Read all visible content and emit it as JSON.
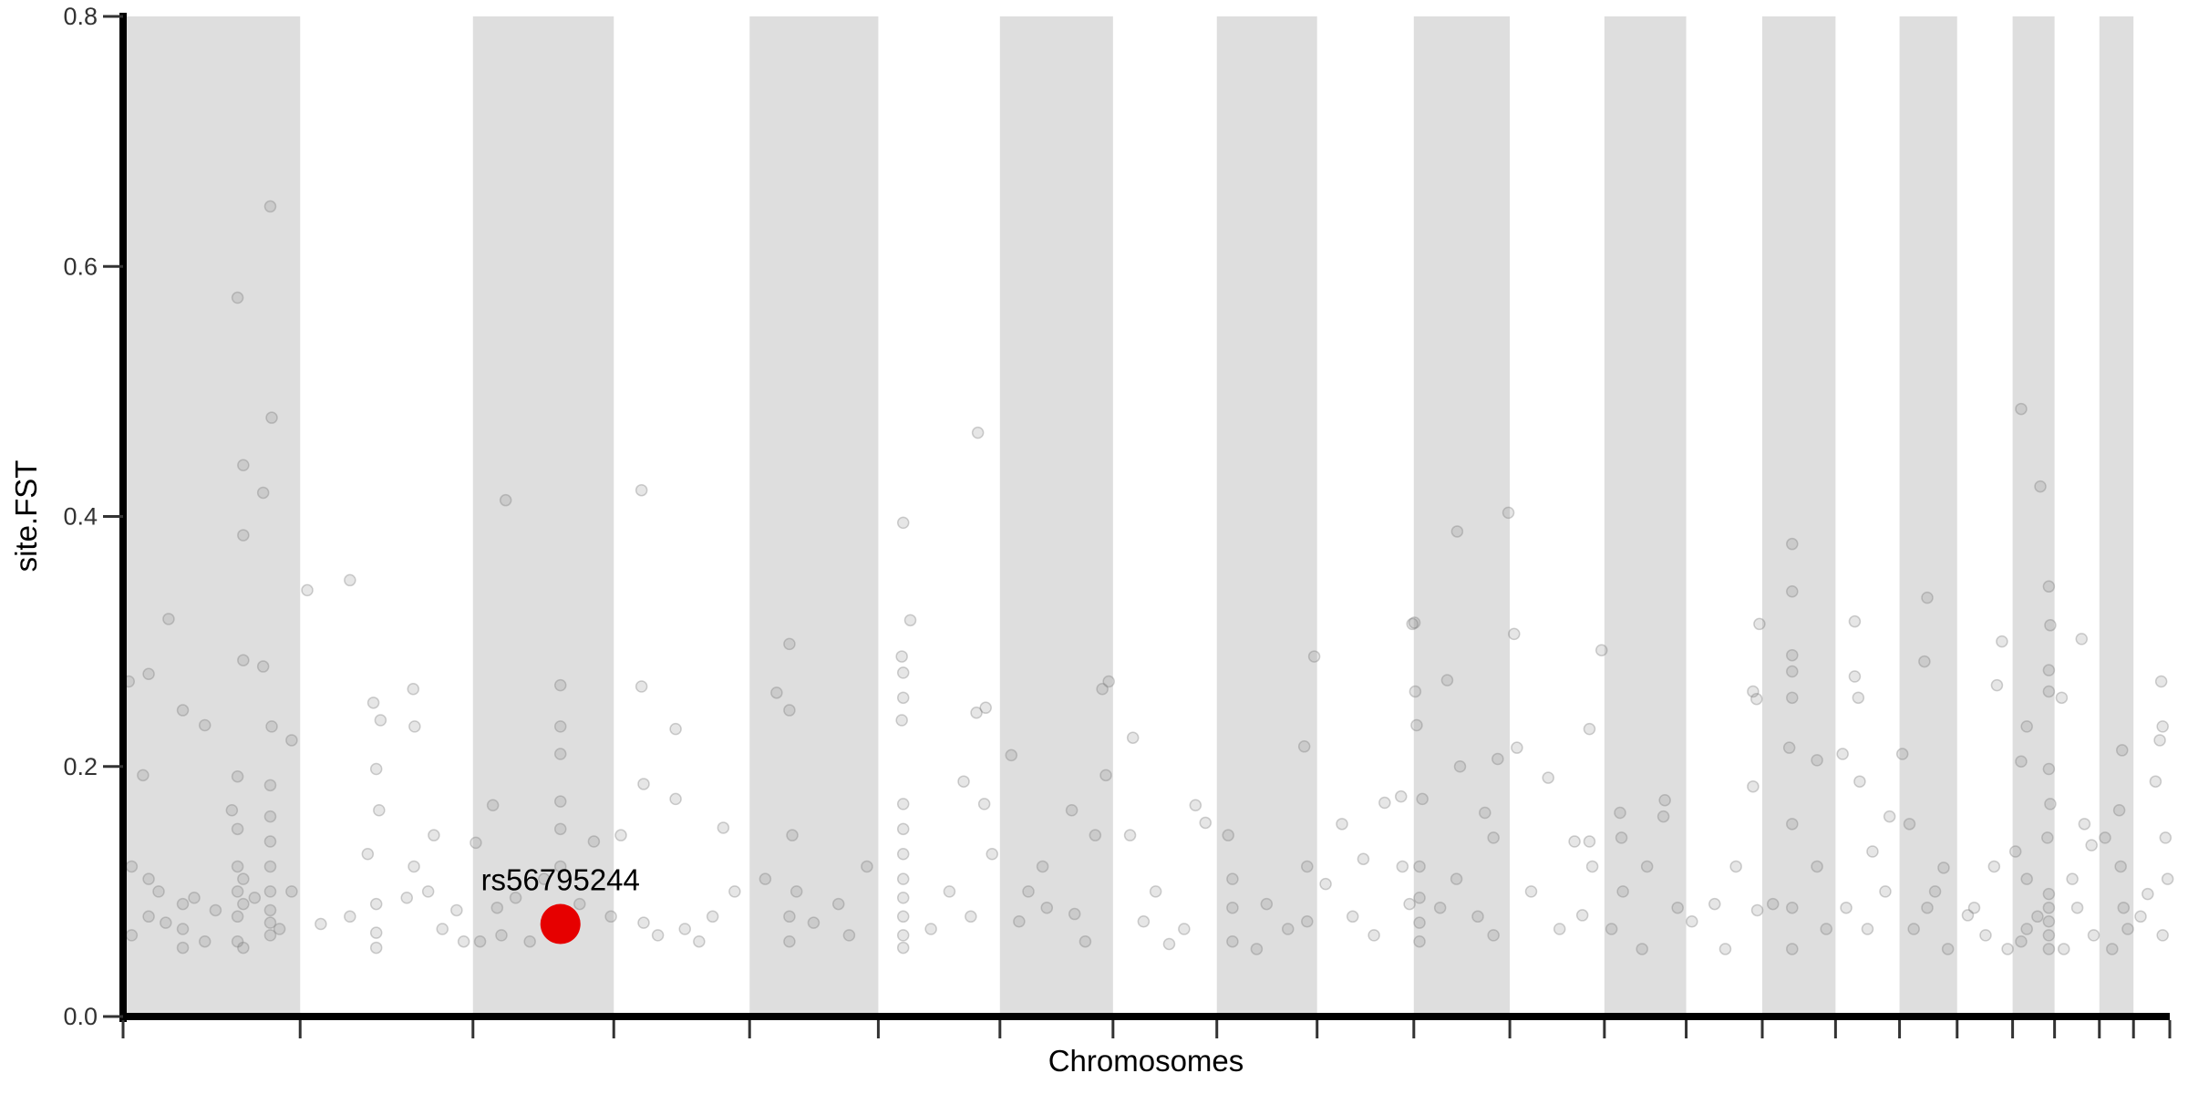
{
  "chart_data": {
    "type": "scatter",
    "title": "",
    "xlabel": "Chromosomes",
    "ylabel": "site.FST",
    "ylim": [
      0,
      0.8
    ],
    "yticks": [
      "0.0",
      "0.2",
      "0.4",
      "0.6",
      "0.8"
    ],
    "grid": false,
    "legend": "none",
    "band_color": "#dedede",
    "point_color": "#777777",
    "highlight_color": "#e60000",
    "chromosome_lengths_mb": [
      249,
      243,
      198,
      191,
      181,
      171,
      159,
      146,
      141,
      136,
      135,
      133,
      115,
      107,
      103,
      90,
      81,
      78,
      59,
      63,
      48,
      51
    ],
    "shaded_chromosomes": [
      1,
      3,
      5,
      7,
      9,
      11,
      13,
      15,
      17,
      19,
      21
    ],
    "highlight": {
      "label": "rs56795244",
      "chr": 3,
      "pos_mb": 123,
      "fst": 0.074
    },
    "points_columns": [
      "chr",
      "pos_mb",
      "fst"
    ],
    "points": [
      [
        1,
        207,
        0.648
      ],
      [
        1,
        161,
        0.575
      ],
      [
        1,
        209,
        0.479
      ],
      [
        1,
        169,
        0.441
      ],
      [
        1,
        197,
        0.419
      ],
      [
        1,
        169,
        0.385
      ],
      [
        1,
        64,
        0.318
      ],
      [
        1,
        169,
        0.285
      ],
      [
        1,
        197,
        0.28
      ],
      [
        1,
        8,
        0.268
      ],
      [
        1,
        36,
        0.274
      ],
      [
        1,
        84,
        0.245
      ],
      [
        1,
        115,
        0.233
      ],
      [
        1,
        209,
        0.232
      ],
      [
        1,
        237,
        0.221
      ],
      [
        1,
        28,
        0.193
      ],
      [
        1,
        161,
        0.192
      ],
      [
        1,
        153,
        0.165
      ],
      [
        1,
        207,
        0.185
      ],
      [
        1,
        207,
        0.16
      ],
      [
        1,
        207,
        0.14
      ],
      [
        1,
        207,
        0.12
      ],
      [
        1,
        207,
        0.1
      ],
      [
        1,
        207,
        0.085
      ],
      [
        1,
        207,
        0.075
      ],
      [
        1,
        207,
        0.065
      ],
      [
        1,
        161,
        0.15
      ],
      [
        1,
        161,
        0.12
      ],
      [
        1,
        161,
        0.1
      ],
      [
        1,
        161,
        0.08
      ],
      [
        1,
        161,
        0.06
      ],
      [
        1,
        169,
        0.11
      ],
      [
        1,
        169,
        0.09
      ],
      [
        1,
        169,
        0.055
      ],
      [
        1,
        84,
        0.09
      ],
      [
        1,
        84,
        0.07
      ],
      [
        1,
        84,
        0.055
      ],
      [
        1,
        36,
        0.11
      ],
      [
        1,
        36,
        0.08
      ],
      [
        1,
        12,
        0.12
      ],
      [
        1,
        12,
        0.065
      ],
      [
        1,
        50,
        0.1
      ],
      [
        1,
        60,
        0.075
      ],
      [
        1,
        100,
        0.095
      ],
      [
        1,
        115,
        0.06
      ],
      [
        1,
        130,
        0.085
      ],
      [
        1,
        185,
        0.095
      ],
      [
        1,
        220,
        0.07
      ],
      [
        1,
        237,
        0.1
      ],
      [
        2,
        10,
        0.341
      ],
      [
        2,
        70,
        0.349
      ],
      [
        2,
        103,
        0.251
      ],
      [
        2,
        159,
        0.262
      ],
      [
        2,
        161,
        0.232
      ],
      [
        2,
        113,
        0.237
      ],
      [
        2,
        107,
        0.198
      ],
      [
        2,
        111,
        0.165
      ],
      [
        2,
        188,
        0.145
      ],
      [
        2,
        95,
        0.13
      ],
      [
        2,
        29,
        0.074
      ],
      [
        2,
        107,
        0.067
      ],
      [
        2,
        107,
        0.09
      ],
      [
        2,
        107,
        0.055
      ],
      [
        2,
        70,
        0.08
      ],
      [
        2,
        150,
        0.095
      ],
      [
        2,
        160,
        0.12
      ],
      [
        2,
        200,
        0.07
      ],
      [
        2,
        220,
        0.085
      ],
      [
        2,
        230,
        0.06
      ],
      [
        2,
        180,
        0.1
      ],
      [
        3,
        46,
        0.413
      ],
      [
        3,
        123,
        0.265
      ],
      [
        3,
        123,
        0.232
      ],
      [
        3,
        123,
        0.21
      ],
      [
        3,
        123,
        0.172
      ],
      [
        3,
        123,
        0.15
      ],
      [
        3,
        123,
        0.12
      ],
      [
        3,
        28,
        0.169
      ],
      [
        3,
        4,
        0.139
      ],
      [
        3,
        34,
        0.087
      ],
      [
        3,
        194,
        0.08
      ],
      [
        3,
        10,
        0.06
      ],
      [
        3,
        40,
        0.065
      ],
      [
        3,
        60,
        0.095
      ],
      [
        3,
        80,
        0.06
      ],
      [
        3,
        100,
        0.11
      ],
      [
        3,
        150,
        0.09
      ],
      [
        3,
        170,
        0.14
      ],
      [
        4,
        39,
        0.421
      ],
      [
        4,
        39,
        0.264
      ],
      [
        4,
        87,
        0.23
      ],
      [
        4,
        87,
        0.174
      ],
      [
        4,
        42,
        0.186
      ],
      [
        4,
        154,
        0.151
      ],
      [
        4,
        42,
        0.075
      ],
      [
        4,
        100,
        0.07
      ],
      [
        4,
        139,
        0.08
      ],
      [
        4,
        62,
        0.065
      ],
      [
        4,
        10,
        0.145
      ],
      [
        4,
        120,
        0.06
      ],
      [
        4,
        170,
        0.1
      ],
      [
        5,
        56,
        0.298
      ],
      [
        5,
        38,
        0.259
      ],
      [
        5,
        56,
        0.245
      ],
      [
        5,
        60,
        0.145
      ],
      [
        5,
        66,
        0.1
      ],
      [
        5,
        22,
        0.11
      ],
      [
        5,
        165,
        0.12
      ],
      [
        5,
        125,
        0.09
      ],
      [
        5,
        56,
        0.08
      ],
      [
        5,
        56,
        0.06
      ],
      [
        5,
        90,
        0.075
      ],
      [
        5,
        140,
        0.065
      ],
      [
        6,
        35,
        0.395
      ],
      [
        6,
        45,
        0.317
      ],
      [
        6,
        33,
        0.288
      ],
      [
        6,
        35,
        0.275
      ],
      [
        6,
        35,
        0.255
      ],
      [
        6,
        33,
        0.237
      ],
      [
        6,
        35,
        0.17
      ],
      [
        6,
        35,
        0.15
      ],
      [
        6,
        35,
        0.13
      ],
      [
        6,
        35,
        0.11
      ],
      [
        6,
        35,
        0.095
      ],
      [
        6,
        35,
        0.08
      ],
      [
        6,
        35,
        0.065
      ],
      [
        6,
        35,
        0.055
      ],
      [
        6,
        140,
        0.467
      ],
      [
        6,
        151,
        0.247
      ],
      [
        6,
        138,
        0.243
      ],
      [
        6,
        120,
        0.188
      ],
      [
        6,
        149,
        0.17
      ],
      [
        6,
        74,
        0.07
      ],
      [
        6,
        100,
        0.1
      ],
      [
        6,
        160,
        0.13
      ],
      [
        6,
        130,
        0.08
      ],
      [
        7,
        16,
        0.209
      ],
      [
        7,
        153,
        0.268
      ],
      [
        7,
        144,
        0.262
      ],
      [
        7,
        149,
        0.193
      ],
      [
        7,
        101,
        0.165
      ],
      [
        7,
        134,
        0.145
      ],
      [
        7,
        27,
        0.076
      ],
      [
        7,
        66,
        0.087
      ],
      [
        7,
        105,
        0.082
      ],
      [
        7,
        60,
        0.12
      ],
      [
        7,
        120,
        0.06
      ],
      [
        7,
        40,
        0.1
      ],
      [
        8,
        28,
        0.223
      ],
      [
        8,
        116,
        0.169
      ],
      [
        8,
        130,
        0.155
      ],
      [
        8,
        79,
        0.058
      ],
      [
        8,
        24,
        0.145
      ],
      [
        8,
        43,
        0.076
      ],
      [
        8,
        60,
        0.1
      ],
      [
        8,
        100,
        0.07
      ],
      [
        9,
        137,
        0.288
      ],
      [
        9,
        123,
        0.216
      ],
      [
        9,
        16,
        0.145
      ],
      [
        9,
        22,
        0.087
      ],
      [
        9,
        56,
        0.054
      ],
      [
        9,
        127,
        0.076
      ],
      [
        9,
        22,
        0.06
      ],
      [
        9,
        22,
        0.11
      ],
      [
        9,
        70,
        0.09
      ],
      [
        9,
        127,
        0.12
      ],
      [
        9,
        100,
        0.07
      ],
      [
        10,
        134,
        0.314
      ],
      [
        10,
        12,
        0.106
      ],
      [
        10,
        35,
        0.154
      ],
      [
        10,
        95,
        0.171
      ],
      [
        10,
        118,
        0.176
      ],
      [
        10,
        65,
        0.126
      ],
      [
        10,
        120,
        0.12
      ],
      [
        10,
        50,
        0.08
      ],
      [
        10,
        80,
        0.065
      ],
      [
        10,
        130,
        0.09
      ],
      [
        11,
        1,
        0.315
      ],
      [
        11,
        61,
        0.388
      ],
      [
        11,
        47,
        0.269
      ],
      [
        11,
        2,
        0.26
      ],
      [
        11,
        4,
        0.233
      ],
      [
        11,
        65,
        0.2
      ],
      [
        11,
        118,
        0.206
      ],
      [
        11,
        133,
        0.403
      ],
      [
        11,
        12,
        0.174
      ],
      [
        11,
        100,
        0.163
      ],
      [
        11,
        112,
        0.143
      ],
      [
        11,
        37,
        0.087
      ],
      [
        11,
        8,
        0.075
      ],
      [
        11,
        8,
        0.06
      ],
      [
        11,
        8,
        0.095
      ],
      [
        11,
        8,
        0.12
      ],
      [
        11,
        90,
        0.08
      ],
      [
        11,
        112,
        0.065
      ],
      [
        11,
        60,
        0.11
      ],
      [
        12,
        6,
        0.306
      ],
      [
        12,
        10,
        0.215
      ],
      [
        12,
        54,
        0.191
      ],
      [
        12,
        91,
        0.14
      ],
      [
        12,
        129,
        0.293
      ],
      [
        12,
        112,
        0.23
      ],
      [
        12,
        112,
        0.14
      ],
      [
        12,
        102,
        0.081
      ],
      [
        12,
        116,
        0.12
      ],
      [
        12,
        30,
        0.1
      ],
      [
        12,
        70,
        0.07
      ],
      [
        13,
        22,
        0.163
      ],
      [
        13,
        24,
        0.143
      ],
      [
        13,
        26,
        0.1
      ],
      [
        13,
        85,
        0.173
      ],
      [
        13,
        83,
        0.16
      ],
      [
        13,
        53,
        0.054
      ],
      [
        13,
        103,
        0.087
      ],
      [
        13,
        10,
        0.07
      ],
      [
        13,
        60,
        0.12
      ],
      [
        14,
        94,
        0.26
      ],
      [
        14,
        99,
        0.254
      ],
      [
        14,
        103,
        0.314
      ],
      [
        14,
        94,
        0.184
      ],
      [
        14,
        55,
        0.054
      ],
      [
        14,
        8,
        0.076
      ],
      [
        14,
        40,
        0.09
      ],
      [
        14,
        70,
        0.12
      ],
      [
        14,
        100,
        0.085
      ],
      [
        15,
        42,
        0.378
      ],
      [
        15,
        42,
        0.34
      ],
      [
        15,
        42,
        0.289
      ],
      [
        15,
        42,
        0.276
      ],
      [
        15,
        42,
        0.255
      ],
      [
        15,
        38,
        0.215
      ],
      [
        15,
        77,
        0.205
      ],
      [
        15,
        42,
        0.154
      ],
      [
        15,
        42,
        0.087
      ],
      [
        15,
        42,
        0.054
      ],
      [
        15,
        77,
        0.12
      ],
      [
        15,
        15,
        0.09
      ],
      [
        15,
        90,
        0.07
      ],
      [
        16,
        27,
        0.316
      ],
      [
        16,
        27,
        0.272
      ],
      [
        16,
        32,
        0.255
      ],
      [
        16,
        10,
        0.21
      ],
      [
        16,
        34,
        0.188
      ],
      [
        16,
        52,
        0.132
      ],
      [
        16,
        76,
        0.16
      ],
      [
        16,
        15,
        0.087
      ],
      [
        16,
        45,
        0.07
      ],
      [
        16,
        70,
        0.1
      ],
      [
        17,
        39,
        0.335
      ],
      [
        17,
        35,
        0.284
      ],
      [
        17,
        4,
        0.21
      ],
      [
        17,
        14,
        0.154
      ],
      [
        17,
        62,
        0.119
      ],
      [
        17,
        39,
        0.087
      ],
      [
        17,
        68,
        0.054
      ],
      [
        17,
        20,
        0.07
      ],
      [
        17,
        50,
        0.1
      ],
      [
        18,
        63,
        0.3
      ],
      [
        18,
        56,
        0.265
      ],
      [
        18,
        24,
        0.087
      ],
      [
        18,
        71,
        0.054
      ],
      [
        18,
        52,
        0.12
      ],
      [
        18,
        15,
        0.081
      ],
      [
        18,
        40,
        0.065
      ],
      [
        19,
        12,
        0.486
      ],
      [
        19,
        39,
        0.424
      ],
      [
        19,
        51,
        0.344
      ],
      [
        19,
        53,
        0.313
      ],
      [
        19,
        51,
        0.277
      ],
      [
        19,
        51,
        0.26
      ],
      [
        19,
        20,
        0.232
      ],
      [
        19,
        12,
        0.204
      ],
      [
        19,
        51,
        0.198
      ],
      [
        19,
        53,
        0.17
      ],
      [
        19,
        49,
        0.143
      ],
      [
        19,
        4,
        0.132
      ],
      [
        19,
        51,
        0.098
      ],
      [
        19,
        51,
        0.087
      ],
      [
        19,
        51,
        0.076
      ],
      [
        19,
        51,
        0.065
      ],
      [
        19,
        51,
        0.054
      ],
      [
        19,
        20,
        0.11
      ],
      [
        19,
        20,
        0.07
      ],
      [
        19,
        12,
        0.06
      ],
      [
        19,
        35,
        0.08
      ],
      [
        20,
        10,
        0.255
      ],
      [
        20,
        38,
        0.302
      ],
      [
        20,
        42,
        0.154
      ],
      [
        20,
        52,
        0.137
      ],
      [
        20,
        13,
        0.054
      ],
      [
        20,
        32,
        0.087
      ],
      [
        20,
        25,
        0.11
      ],
      [
        20,
        55,
        0.065
      ],
      [
        21,
        32,
        0.213
      ],
      [
        21,
        28,
        0.165
      ],
      [
        21,
        8,
        0.143
      ],
      [
        21,
        34,
        0.087
      ],
      [
        21,
        18,
        0.054
      ],
      [
        21,
        30,
        0.12
      ],
      [
        21,
        40,
        0.07
      ],
      [
        22,
        39,
        0.268
      ],
      [
        22,
        41,
        0.232
      ],
      [
        22,
        37,
        0.221
      ],
      [
        22,
        31,
        0.188
      ],
      [
        22,
        45,
        0.143
      ],
      [
        22,
        20,
        0.098
      ],
      [
        22,
        41,
        0.065
      ],
      [
        22,
        10,
        0.08
      ],
      [
        22,
        48,
        0.11
      ]
    ]
  }
}
